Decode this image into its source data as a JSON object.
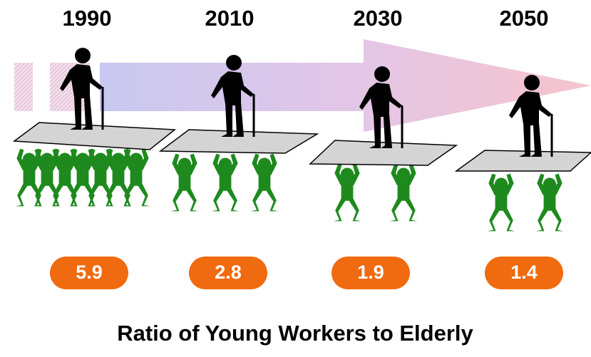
{
  "title": "Ratio of Young Workers to Elderly",
  "periods": [
    {
      "year": 1990,
      "ratio": 5.9
    },
    {
      "year": 2010,
      "ratio": 2.8
    },
    {
      "year": 2030,
      "ratio": 1.9
    },
    {
      "year": 2050,
      "ratio": 1.4
    }
  ]
}
